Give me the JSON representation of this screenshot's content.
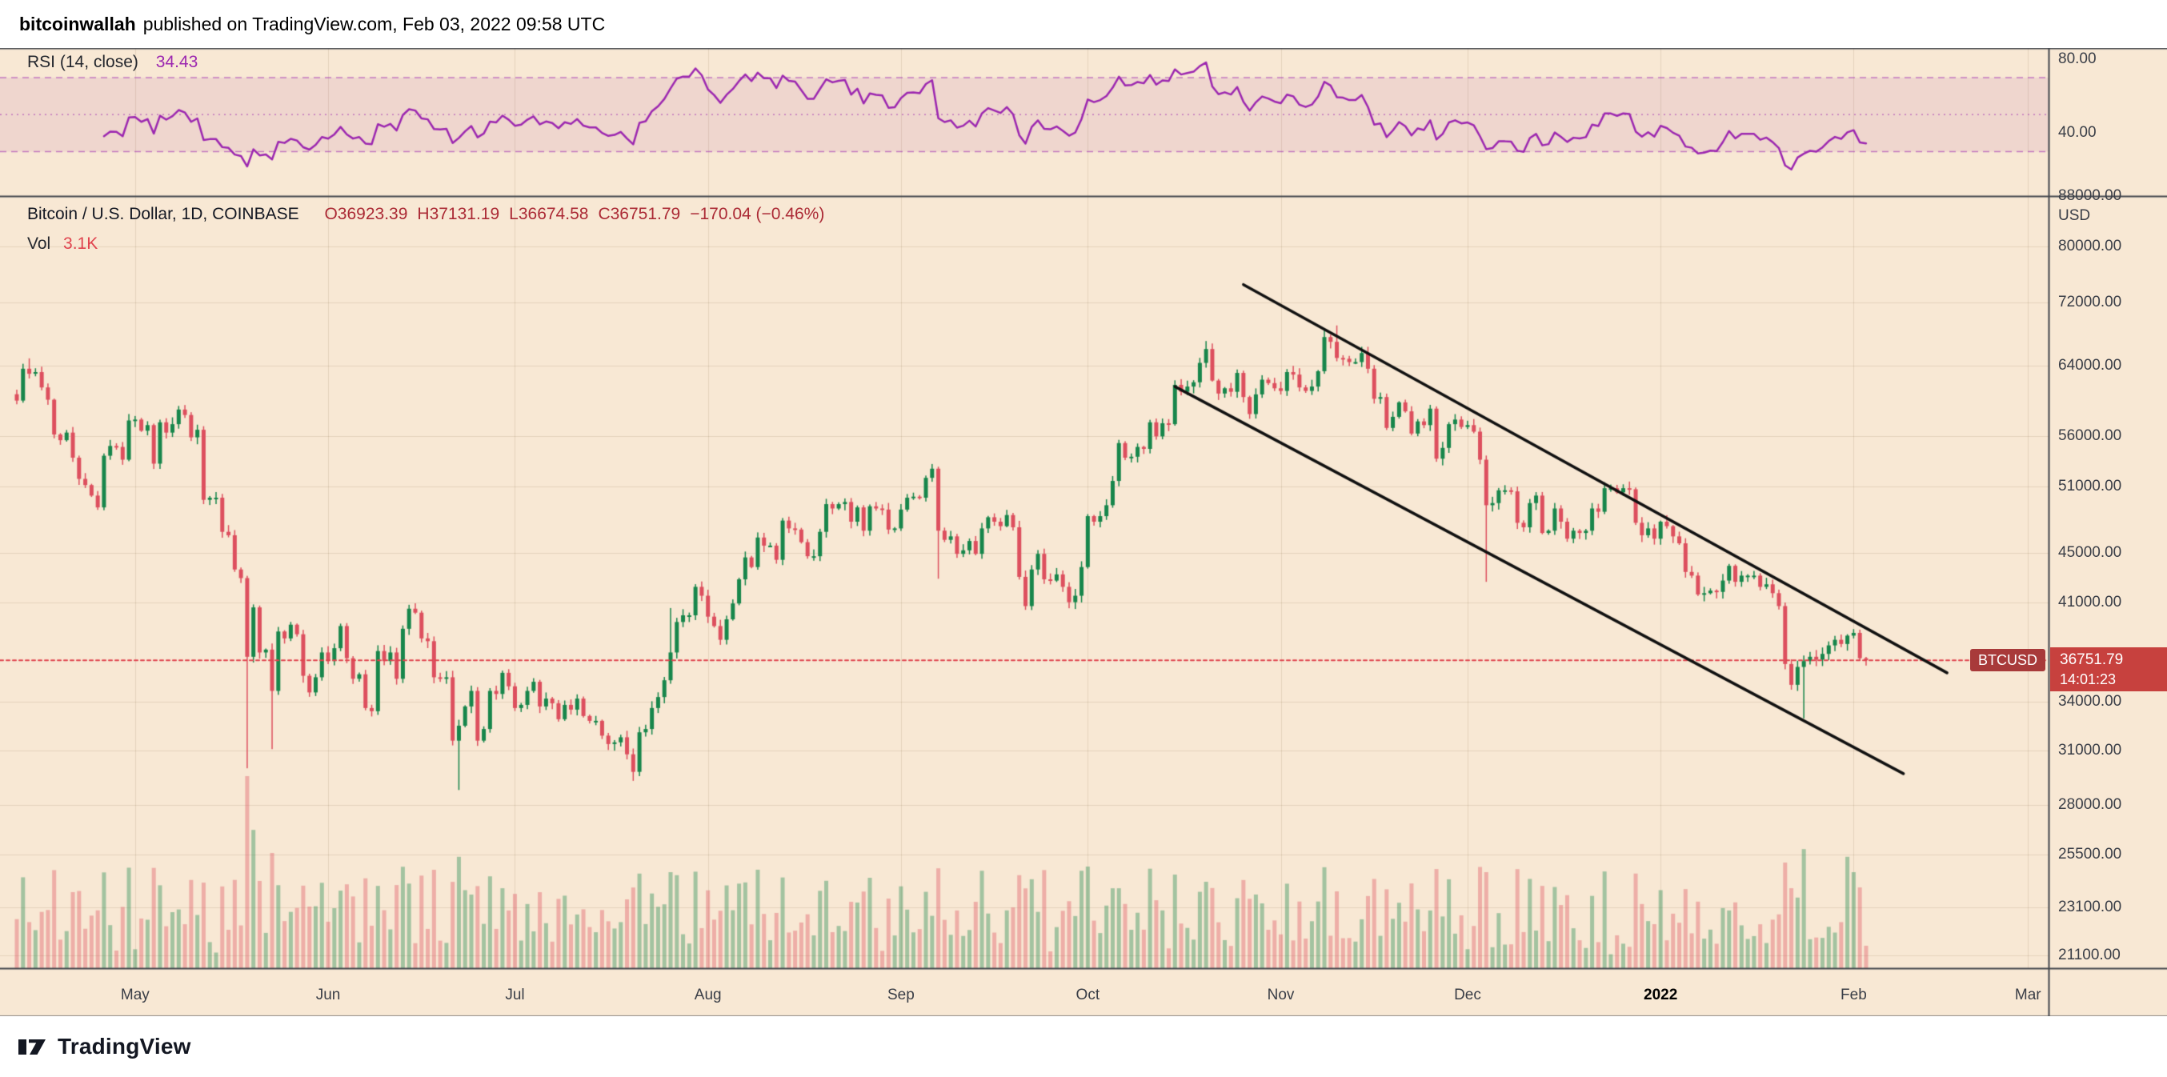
{
  "header": {
    "author": "bitcoinwallah",
    "publish_text": "published on TradingView.com, Feb 03, 2022 09:58 UTC"
  },
  "footer": {
    "brand": "TradingView"
  },
  "colors": {
    "background": "#f8e8d4",
    "up": "#17864b",
    "down": "#dd4f5e",
    "vol_up": "rgba(23,134,75,0.38)",
    "vol_down": "rgba(221,79,94,0.38)",
    "rsi_line": "#9c27b0",
    "rsi_band_fill": "rgba(170,60,160,0.10)",
    "rsi_band_line": "rgba(156,39,176,0.55)",
    "grid": "rgba(100,70,30,0.13)",
    "separator": "#43464d",
    "trendline": "#111111",
    "price_line": "#e0444e",
    "price_label_bg": "#c7413e",
    "symbol_tag_bg": "#a83a3a"
  },
  "rsi_panel": {
    "legend_label": "RSI (14, close)",
    "legend_value": "34.43",
    "period": 14,
    "upper_band": 70,
    "lower_band": 30,
    "middle": 50,
    "scale_max": 86,
    "scale_min": 6,
    "axis_labels": [
      {
        "value": 80,
        "text": "80.00"
      },
      {
        "value": 40,
        "text": "40.00"
      }
    ]
  },
  "main_panel": {
    "legend_title": "Bitcoin / U.S. Dollar, 1D, COINBASE",
    "ohlc_items": [
      {
        "l": "O",
        "v": "36923.39"
      },
      {
        "l": "H",
        "v": "37131.19"
      },
      {
        "l": "L",
        "v": "36674.58"
      },
      {
        "l": "C",
        "v": "36751.79"
      }
    ],
    "change_text": "−170.04 (−0.46%)",
    "volume_label": "Vol",
    "volume_value": "3.1K",
    "axis_currency": "USD",
    "price_axis_labels": [
      {
        "price": 88000,
        "text": "88000.00"
      },
      {
        "price": 80000,
        "text": "80000.00"
      },
      {
        "price": 72000,
        "text": "72000.00"
      },
      {
        "price": 64000,
        "text": "64000.00"
      },
      {
        "price": 56000,
        "text": "56000.00"
      },
      {
        "price": 51000,
        "text": "51000.00"
      },
      {
        "price": 45000,
        "text": "45000.00"
      },
      {
        "price": 41000,
        "text": "41000.00"
      },
      {
        "price": 34000,
        "text": "34000.00"
      },
      {
        "price": 31000,
        "text": "31000.00"
      },
      {
        "price": 28000,
        "text": "28000.00"
      },
      {
        "price": 25500,
        "text": "25500.00"
      },
      {
        "price": 23100,
        "text": "23100.00"
      },
      {
        "price": 21100,
        "text": "21100.00"
      }
    ],
    "price_label": {
      "symbol": "BTCUSD",
      "price": "36751.79",
      "countdown": "14:01:23"
    }
  },
  "time_axis": {
    "labels": [
      {
        "text": "May",
        "day_index": 19
      },
      {
        "text": "Jun",
        "day_index": 50
      },
      {
        "text": "Jul",
        "day_index": 80
      },
      {
        "text": "Aug",
        "day_index": 111
      },
      {
        "text": "Sep",
        "day_index": 142
      },
      {
        "text": "Oct",
        "day_index": 172
      },
      {
        "text": "Nov",
        "day_index": 203
      },
      {
        "text": "Dec",
        "day_index": 233
      },
      {
        "text": "2022",
        "day_index": 264,
        "emphasis": true
      },
      {
        "text": "Feb",
        "day_index": 295
      },
      {
        "text": "Mar",
        "day_index": 323
      }
    ]
  },
  "chart_data": {
    "type": "candlestick",
    "symbol": "BTCUSD",
    "exchange": "COINBASE",
    "interval": "1D",
    "start_date": "2021-04-12",
    "end_date": "2022-02-03",
    "price_scale": "log",
    "visible_price_range": [
      20600,
      88000
    ],
    "last_price": 36751.79,
    "closes": [
      59900,
      63600,
      63000,
      63200,
      61400,
      60000,
      56200,
      55600,
      56400,
      53800,
      51700,
      51100,
      50100,
      49000,
      54000,
      55000,
      54900,
      53600,
      57700,
      57800,
      56600,
      57200,
      53200,
      57500,
      56400,
      57300,
      58900,
      58300,
      55900,
      56700,
      49700,
      49900,
      49900,
      46800,
      46500,
      43600,
      42900,
      37000,
      40600,
      37300,
      37500,
      34700,
      38800,
      38300,
      39300,
      38600,
      35700,
      34600,
      35600,
      37300,
      36700,
      37600,
      39200,
      36900,
      35500,
      35800,
      33600,
      33400,
      37400,
      36700,
      37300,
      35500,
      39000,
      40500,
      40200,
      38300,
      38100,
      35600,
      35500,
      35600,
      31600,
      32500,
      33700,
      34700,
      31600,
      32300,
      34700,
      34500,
      35900,
      35000,
      33600,
      33800,
      34700,
      35300,
      33700,
      34200,
      33900,
      32900,
      33800,
      33500,
      34200,
      33100,
      32800,
      32800,
      31900,
      31400,
      31500,
      31800,
      30800,
      29800,
      32100,
      32300,
      33600,
      34300,
      35400,
      37300,
      39500,
      40000,
      40000,
      42200,
      41500,
      39900,
      39200,
      38200,
      39700,
      40900,
      42800,
      44600,
      43800,
      46300,
      45600,
      45600,
      44400,
      47800,
      47100,
      47000,
      45900,
      44700,
      44700,
      46800,
      49300,
      48900,
      49300,
      49500,
      47700,
      49000,
      46900,
      49100,
      48900,
      48800,
      47000,
      47100,
      48800,
      49900,
      50000,
      49900,
      51800,
      52700,
      46900,
      46100,
      46400,
      44900,
      45200,
      46000,
      44900,
      47100,
      48100,
      47700,
      47300,
      48300,
      47200,
      43000,
      40700,
      43600,
      44900,
      42800,
      42700,
      43200,
      42200,
      41000,
      41500,
      43800,
      48200,
      47700,
      48200,
      49200,
      51500,
      55300,
      53800,
      53900,
      54900,
      54700,
      57500,
      56000,
      57400,
      57300,
      61700,
      60900,
      61500,
      62000,
      64300,
      66000,
      62200,
      60700,
      61300,
      60900,
      63100,
      60300,
      58400,
      60600,
      62300,
      61900,
      61300,
      61000,
      63200,
      62900,
      61400,
      61000,
      61500,
      63300,
      67500,
      66900,
      64900,
      64800,
      64400,
      64400,
      65500,
      63600,
      60100,
      60300,
      56900,
      58100,
      59700,
      58700,
      56300,
      57600,
      57200,
      59000,
      53700,
      54800,
      57300,
      57800,
      57000,
      57200,
      56500,
      53600,
      49200,
      49400,
      50600,
      50600,
      50500,
      47600,
      47200,
      49400,
      50100,
      46700,
      46900,
      48900,
      47700,
      46200,
      46900,
      46700,
      46900,
      48900,
      48600,
      50800,
      50800,
      50400,
      50800,
      50700,
      47600,
      46500,
      47100,
      46200,
      47700,
      47300,
      46400,
      45800,
      43400,
      43100,
      41600,
      41700,
      41900,
      41800,
      42700,
      43900,
      42600,
      43100,
      43100,
      43100,
      42200,
      42400,
      41700,
      40700,
      36500,
      35100,
      36300,
      36700,
      37000,
      36800,
      37200,
      37800,
      38200,
      37900,
      38500,
      38700,
      36900,
      36751.79
    ],
    "wick_overrides": {
      "2": {
        "high": 64850
      },
      "37": {
        "low": 30000
      },
      "41": {
        "low": 31100
      },
      "71": {
        "low": 28800
      },
      "99": {
        "low": 29300
      },
      "105": {
        "high": 40550
      },
      "148": {
        "low": 42850
      },
      "191": {
        "high": 66999
      },
      "212": {
        "high": 68990
      },
      "236": {
        "low": 42600
      },
      "287": {
        "low": 32950
      }
    },
    "volume_spikes": {
      "37": 1.0,
      "38": 0.72,
      "41": 0.6,
      "71": 0.58,
      "99": 0.42,
      "105": 0.5,
      "148": 0.52,
      "191": 0.45,
      "212": 0.4,
      "236": 0.5,
      "284": 0.55,
      "287": 0.62,
      "294": 0.58,
      "295": 0.5
    },
    "trendlines": [
      {
        "day1": 197,
        "price1": 74500,
        "day2": 310,
        "price2": 35900
      },
      {
        "day1": 186,
        "price1": 61500,
        "day2": 303,
        "price2": 29700
      }
    ]
  }
}
